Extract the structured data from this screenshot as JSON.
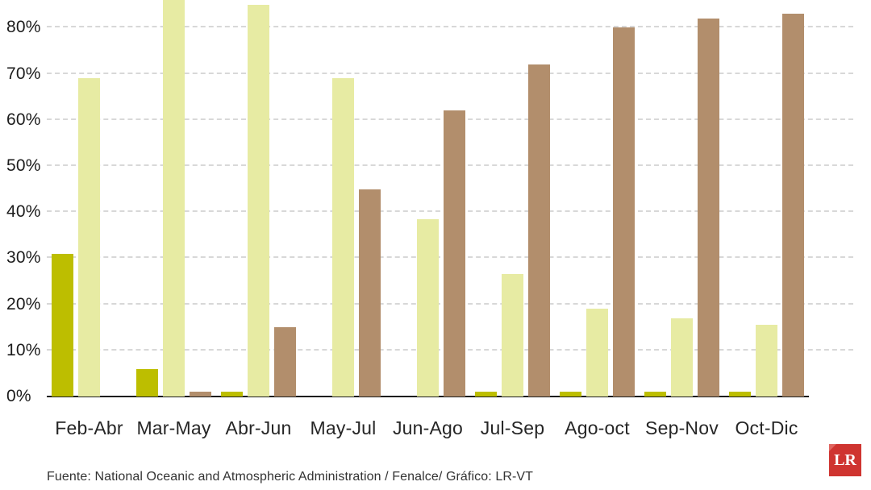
{
  "chart_data": {
    "type": "bar",
    "categories": [
      "Feb-Abr",
      "Mar-May",
      "Abr-Jun",
      "May-Jul",
      "Jun-Ago",
      "Jul-Sep",
      "Ago-oct",
      "Sep-Nov",
      "Oct-Dic"
    ],
    "series": [
      {
        "name": "olive-bars",
        "color": "#bdbe00",
        "values": [
          31,
          6,
          1,
          0,
          0,
          1,
          1,
          1,
          1
        ]
      },
      {
        "name": "light-yellow-bars",
        "color": "#e7eba3",
        "values": [
          69,
          87,
          85,
          69,
          38.5,
          26.5,
          19,
          17,
          15.5
        ]
      },
      {
        "name": "brown-bars",
        "color": "#b28e6c",
        "values": [
          0,
          1,
          15,
          45,
          62,
          72,
          80,
          82,
          83
        ]
      }
    ],
    "yticks": [
      {
        "value": 0,
        "label": "0%"
      },
      {
        "value": 10,
        "label": "10%"
      },
      {
        "value": 20,
        "label": "20%"
      },
      {
        "value": 30,
        "label": "30%"
      },
      {
        "value": 40,
        "label": "40%"
      },
      {
        "value": 50,
        "label": "50%"
      },
      {
        "value": 60,
        "label": "60%"
      },
      {
        "value": 70,
        "label": "70%"
      },
      {
        "value": 80,
        "label": "80%"
      }
    ],
    "ylim": [
      0,
      86
    ],
    "grid": true,
    "legend": false,
    "title": "",
    "xlabel": "",
    "ylabel": ""
  },
  "footer": {
    "source": "Fuente: National Oceanic and Atmospheric Administration / Fenalce/ Gráfico: LR-VT",
    "logo_text": "LR"
  },
  "colors": {
    "background": "#ffffff",
    "gridline": "#d8d8d8",
    "axis": "#1c1c1c",
    "logo_red": "#cf3430"
  }
}
